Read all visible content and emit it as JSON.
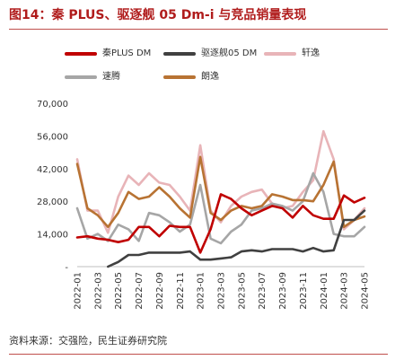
{
  "figure": {
    "title": "图14：秦 PLUS、驱逐舰 05 Dm-i 与竞品销量表现",
    "source": "资料来源：交强险，民生证券研究院"
  },
  "chart_data": {
    "type": "line",
    "ylim": [
      0,
      70000
    ],
    "yticks": [
      0,
      14000,
      28000,
      42000,
      56000,
      70000
    ],
    "ytick_labels": [
      "-",
      "14,000",
      "28,000",
      "42,000",
      "56,000",
      "70,000"
    ],
    "x": [
      "2022-01",
      "2022-02",
      "2022-03",
      "2022-04",
      "2022-05",
      "2022-06",
      "2022-07",
      "2022-08",
      "2022-09",
      "2022-10",
      "2022-11",
      "2022-12",
      "2023-01",
      "2023-02",
      "2023-03",
      "2023-04",
      "2023-05",
      "2023-06",
      "2023-07",
      "2023-08",
      "2023-09",
      "2023-10",
      "2023-11",
      "2023-12",
      "2024-01",
      "2024-02",
      "2024-03",
      "2024-04",
      "2024-05"
    ],
    "xtick_labels": [
      "2022-01",
      "2022-03",
      "2022-05",
      "2022-07",
      "2022-09",
      "2022-11",
      "2023-01",
      "2023-03",
      "2023-05",
      "2023-07",
      "2023-09",
      "2023-11",
      "2024-01",
      "2024-03",
      "2024-05"
    ],
    "grid": false,
    "legend_position": "top",
    "series": [
      {
        "name": "秦PLUS DM",
        "color": "#c00000",
        "values": [
          12500,
          13000,
          12000,
          11500,
          10500,
          11500,
          17000,
          17000,
          13000,
          17500,
          17000,
          17000,
          6000,
          16000,
          31000,
          29000,
          25000,
          22000,
          24000,
          26000,
          25000,
          21000,
          26000,
          22000,
          20500,
          20500,
          30500,
          27500,
          29500
        ]
      },
      {
        "name": "驱逐舰05 DM",
        "color": "#404040",
        "values": [
          null,
          null,
          null,
          0,
          2000,
          5000,
          5000,
          6000,
          6000,
          6000,
          6000,
          6500,
          3000,
          3000,
          3500,
          4000,
          6500,
          7000,
          6500,
          7500,
          7500,
          7500,
          6500,
          8000,
          6500,
          7000,
          20000,
          20000,
          24000
        ]
      },
      {
        "name": "轩逸",
        "color": "#e8b4b8",
        "values": [
          46000,
          24000,
          24000,
          14500,
          30000,
          39000,
          35000,
          40000,
          36000,
          35000,
          30000,
          24000,
          52000,
          24000,
          19000,
          26000,
          30000,
          32000,
          33000,
          27000,
          25000,
          26000,
          32000,
          37000,
          58000,
          46000,
          16000,
          20000,
          25000
        ]
      },
      {
        "name": "速腾",
        "color": "#a6a6a6",
        "values": [
          25000,
          12000,
          14000,
          11000,
          18000,
          16000,
          11000,
          23000,
          22000,
          19000,
          15000,
          18000,
          35000,
          12000,
          10000,
          15000,
          18000,
          24000,
          25000,
          27000,
          26000,
          24000,
          28000,
          40000,
          32000,
          14000,
          13000,
          13000,
          17000
        ]
      },
      {
        "name": "朗逸",
        "color": "#b87333",
        "values": [
          44000,
          25000,
          22000,
          17000,
          23000,
          32000,
          29000,
          30000,
          34000,
          30000,
          25000,
          21000,
          47000,
          23000,
          20000,
          24000,
          26000,
          25000,
          26000,
          31000,
          30000,
          28500,
          28500,
          28000,
          35000,
          45000,
          17000,
          20000,
          21500
        ]
      }
    ]
  }
}
